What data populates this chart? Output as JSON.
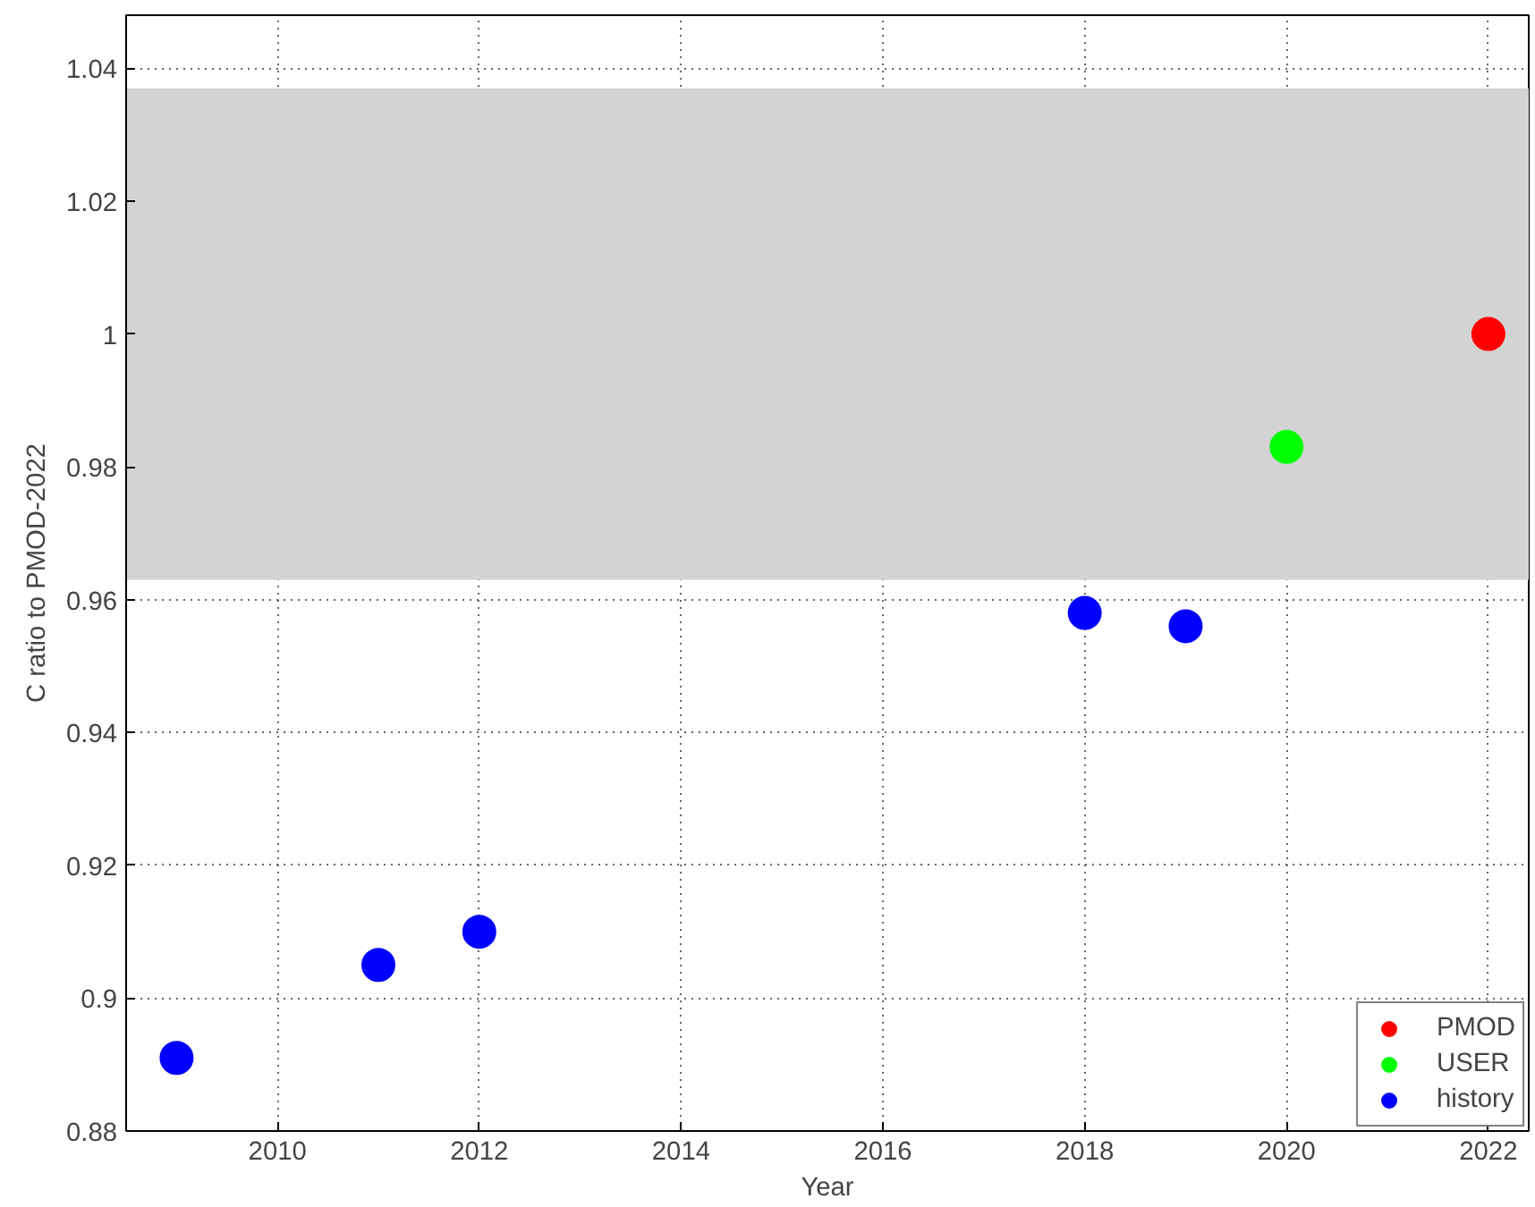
{
  "chart_data": {
    "type": "scatter",
    "xlabel": "Year",
    "ylabel": "C ratio to PMOD-2022",
    "series": [
      {
        "name": "PMOD",
        "color": "#ff0000",
        "x": [
          2022
        ],
        "values": [
          1.0
        ]
      },
      {
        "name": "USER",
        "color": "#00ff00",
        "x": [
          2020
        ],
        "values": [
          0.983
        ]
      },
      {
        "name": "history",
        "color": "#0000ff",
        "x": [
          2009,
          2011,
          2012,
          2018,
          2019
        ],
        "values": [
          0.891,
          0.905,
          0.91,
          0.958,
          0.956
        ]
      }
    ],
    "bands": [
      {
        "axis": "y",
        "from": 0.963,
        "to": 1.037,
        "color": "#d3d3d3"
      }
    ],
    "xlim": [
      2008.5,
      2022.4
    ],
    "xticks": [
      2010,
      2012,
      2014,
      2016,
      2018,
      2020,
      2022
    ],
    "ylim": [
      0.88,
      1.048
    ],
    "yticks": [
      0.88,
      0.9,
      0.92,
      0.94,
      0.96,
      0.98,
      1,
      1.02,
      1.04
    ],
    "grid": true,
    "legend": "bottom right",
    "marker": "circle"
  }
}
